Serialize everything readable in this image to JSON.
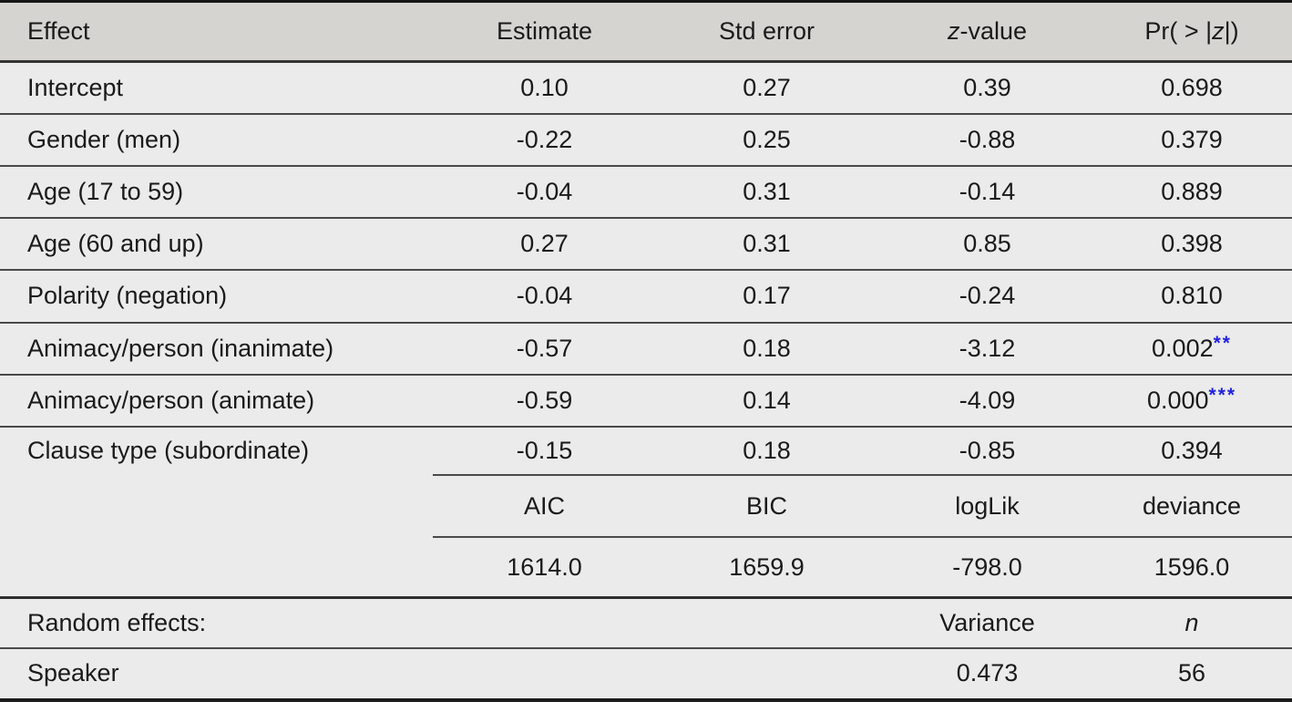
{
  "colors": {
    "header_bg": "#d5d4d1",
    "body_bg": "#ebebeb",
    "rule_dark": "#2e2e2e",
    "rule_thin": "#4a4a4a",
    "significance_star_blue": "#2222e0"
  },
  "table": {
    "header": {
      "effect": "Effect",
      "estimate": "Estimate",
      "std_error": "Std error",
      "z_italic": "z",
      "z_rest": "-value",
      "pr_pre": "Pr( > |",
      "pr_z": "z",
      "pr_post": "|)"
    },
    "rows": [
      {
        "effect": "Intercept",
        "estimate": "0.10",
        "std_error": "0.27",
        "z": "0.39",
        "p": "0.698",
        "stars": ""
      },
      {
        "effect": "Gender (men)",
        "estimate": "-0.22",
        "std_error": "0.25",
        "z": "-0.88",
        "p": "0.379",
        "stars": ""
      },
      {
        "effect": "Age (17 to 59)",
        "estimate": "-0.04",
        "std_error": "0.31",
        "z": "-0.14",
        "p": "0.889",
        "stars": ""
      },
      {
        "effect": "Age (60 and up)",
        "estimate": "0.27",
        "std_error": "0.31",
        "z": "0.85",
        "p": "0.398",
        "stars": ""
      },
      {
        "effect": "Polarity (negation)",
        "estimate": "-0.04",
        "std_error": "0.17",
        "z": "-0.24",
        "p": "0.810",
        "stars": ""
      },
      {
        "effect": "Animacy/person (inanimate)",
        "estimate": "-0.57",
        "std_error": "0.18",
        "z": "-3.12",
        "p": "0.002",
        "stars": "**"
      },
      {
        "effect": "Animacy/person (animate)",
        "estimate": "-0.59",
        "std_error": "0.14",
        "z": "-4.09",
        "p": "0.000",
        "stars": "***"
      },
      {
        "effect": "Clause type (subordinate)",
        "estimate": "-0.15",
        "std_error": "0.18",
        "z": "-0.85",
        "p": "0.394",
        "stars": ""
      }
    ],
    "fit": {
      "labels": {
        "aic": "AIC",
        "bic": "BIC",
        "loglik": "logLik",
        "deviance": "deviance"
      },
      "values": {
        "aic": "1614.0",
        "bic": "1659.9",
        "loglik": "-798.0",
        "deviance": "1596.0"
      }
    },
    "random_effects": {
      "title": "Random effects:",
      "variance_label": "Variance",
      "n_label": "n",
      "speaker": {
        "name": "Speaker",
        "variance": "0.473",
        "n": "56"
      }
    }
  }
}
